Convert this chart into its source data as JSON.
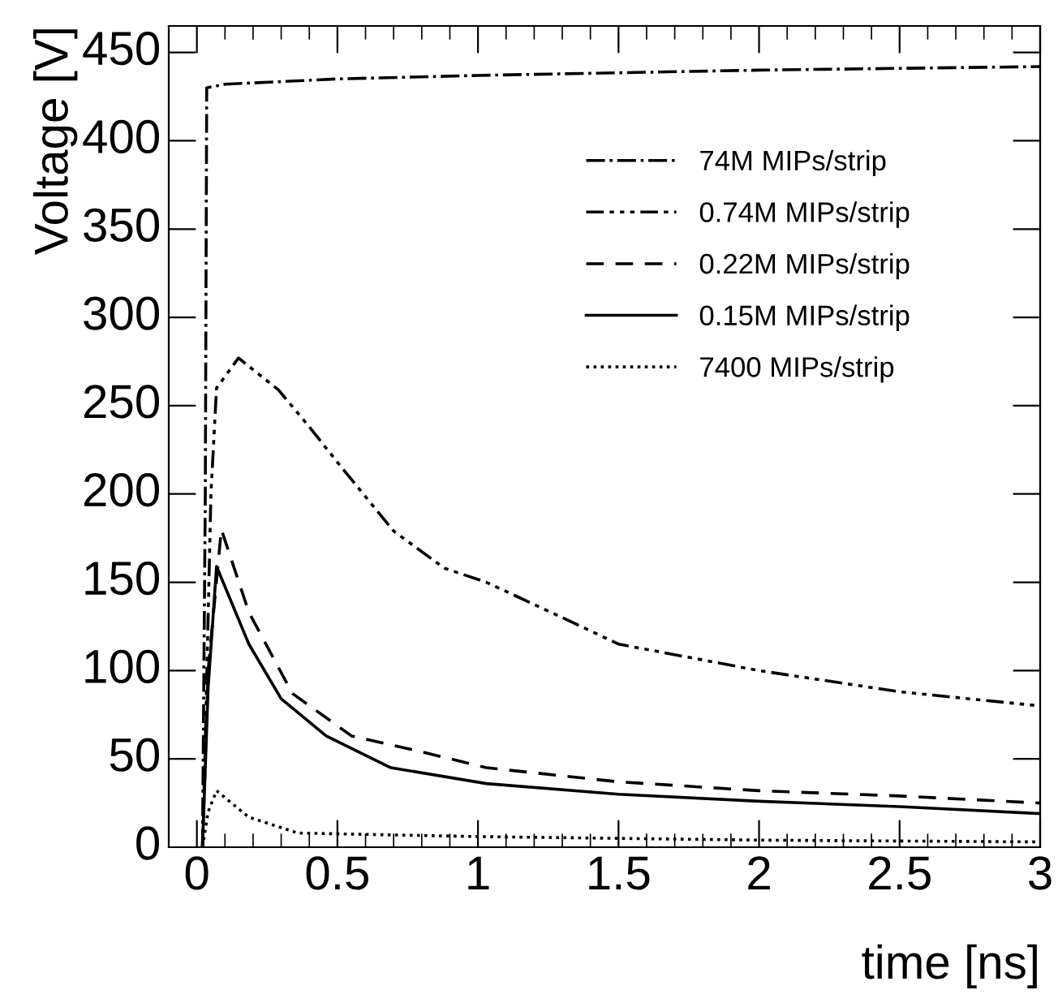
{
  "chart_data": {
    "type": "line",
    "xlabel": "time [ns]",
    "ylabel": "Voltage [V]",
    "xlim": [
      -0.1,
      3
    ],
    "ylim": [
      0,
      465
    ],
    "xticks": [
      0,
      0.5,
      1,
      1.5,
      2,
      2.5,
      3
    ],
    "yticks": [
      0,
      50,
      100,
      150,
      200,
      250,
      300,
      350,
      400,
      450
    ],
    "grid": false,
    "legend": "top right",
    "marker": "none",
    "series": [
      {
        "name": "74M MIPs/strip",
        "color": "#000000",
        "line_style": "dashdot",
        "x": [
          0.02,
          0.03,
          0.035,
          0.1,
          0.5,
          1,
          2,
          3
        ],
        "values": [
          0,
          200,
          430,
          432,
          435,
          437,
          440,
          442
        ]
      },
      {
        "name": "0.74M MIPs/strip",
        "color": "#000000",
        "line_style": "dashdotdot",
        "x": [
          0.02,
          0.03,
          0.05,
          0.07,
          0.148,
          0.29,
          0.4,
          0.51,
          0.7,
          0.88,
          1.03,
          1.3,
          1.5,
          2,
          2.5,
          3
        ],
        "values": [
          0,
          60,
          200,
          260,
          277,
          259,
          238,
          216,
          179,
          158,
          150,
          130,
          115,
          100,
          88,
          80
        ]
      },
      {
        "name": "0.22M MIPs/strip",
        "color": "#000000",
        "line_style": "dashed",
        "x": [
          0.02,
          0.04,
          0.087,
          0.185,
          0.34,
          0.55,
          0.8,
          1.03,
          1.5,
          2,
          2.5,
          3
        ],
        "values": [
          0,
          100,
          180,
          133,
          87,
          63,
          54,
          45,
          37,
          32,
          29,
          25
        ]
      },
      {
        "name": "0.15M MIPs/strip",
        "color": "#000000",
        "line_style": "solid",
        "x": [
          0.02,
          0.04,
          0.07,
          0.185,
          0.3,
          0.46,
          0.69,
          1.03,
          1.5,
          2,
          2.5,
          3
        ],
        "values": [
          0,
          90,
          159,
          115,
          84,
          63,
          45,
          36,
          30,
          26,
          23,
          19
        ]
      },
      {
        "name": "7400 MIPs/strip",
        "color": "#000000",
        "line_style": "dotted",
        "x": [
          0.02,
          0.04,
          0.07,
          0.185,
          0.36,
          1,
          2,
          3
        ],
        "values": [
          0,
          20,
          32,
          17,
          8,
          6,
          4,
          3
        ]
      }
    ]
  }
}
